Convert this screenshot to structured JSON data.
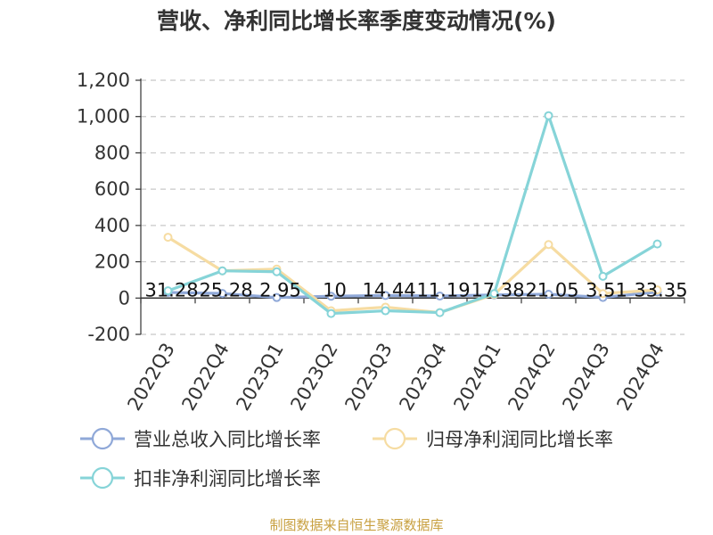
{
  "chart_data": {
    "type": "line",
    "title": "营收、净利同比增长率季度变动情况(%)",
    "source": "制图数据来自恒生聚源数据库",
    "categories": [
      "2022Q3",
      "2022Q4",
      "2023Q1",
      "2023Q2",
      "2023Q3",
      "2023Q4",
      "2024Q1",
      "2024Q2",
      "2024Q3",
      "2024Q4"
    ],
    "ylim": [
      -200,
      1200
    ],
    "yticks": [
      -200,
      0,
      200,
      400,
      600,
      800,
      "1,000",
      "1,200"
    ],
    "grid": true,
    "legend_position": "bottom",
    "series": [
      {
        "name": "营业总收入同比增长率",
        "color": "#8fa8d8",
        "values": [
          31.28,
          25.28,
          2.95,
          10,
          14.44,
          11.19,
          17.38,
          21.05,
          3.51,
          33.35
        ],
        "labels": [
          "31.28",
          "25.28",
          "2.95",
          "10",
          "14.44",
          "11.19",
          "17.38",
          "21.05",
          "3.51",
          "33.35"
        ]
      },
      {
        "name": "归母净利润同比增长率",
        "color": "#f6dca2",
        "values": [
          335,
          150,
          160,
          -70,
          -50,
          -80,
          20,
          295,
          25,
          45
        ]
      },
      {
        "name": "扣非净利润同比增长率",
        "color": "#86d4d8",
        "values": [
          40,
          150,
          145,
          -85,
          -70,
          -80,
          25,
          1005,
          120,
          298
        ]
      }
    ]
  }
}
